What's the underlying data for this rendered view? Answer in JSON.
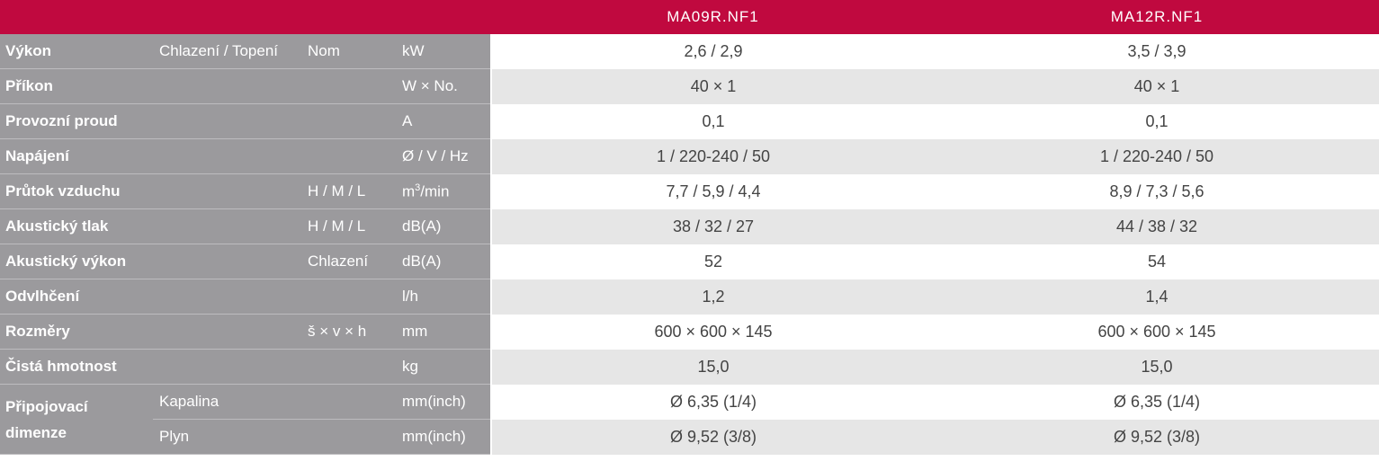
{
  "header": {
    "models": [
      "MA09R.NF1",
      "MA12R.NF1"
    ]
  },
  "rows": [
    {
      "label": "Výkon",
      "mode": "Chlazení / Topení",
      "nom": "Nom",
      "unit": "kW",
      "values": [
        "2,6 / 2,9",
        "3,5 / 3,9"
      ]
    },
    {
      "label": "Příkon",
      "mode": "",
      "nom": "",
      "unit": "W × No.",
      "values": [
        "40 × 1",
        "40 × 1"
      ]
    },
    {
      "label": "Provozní proud",
      "mode": "",
      "nom": "",
      "unit": "A",
      "values": [
        "0,1",
        "0,1"
      ]
    },
    {
      "label": "Napájení",
      "mode": "",
      "nom": "",
      "unit": "Ø / V / Hz",
      "values": [
        "1 / 220-240 / 50",
        "1 / 220-240 / 50"
      ]
    },
    {
      "label": "Průtok vzduchu",
      "mode": "",
      "nom": "H / M / L",
      "unit_base": "m",
      "unit_sup": "3",
      "unit_rest": "/min",
      "values": [
        "7,7 / 5,9 / 4,4",
        "8,9 / 7,3 / 5,6"
      ]
    },
    {
      "label": "Akustický tlak",
      "mode": "",
      "nom": "H / M / L",
      "unit": "dB(A)",
      "values": [
        "38 / 32 / 27",
        "44 / 38 / 32"
      ]
    },
    {
      "label": "Akustický výkon",
      "mode": "",
      "nom": "Chlazení",
      "unit": "dB(A)",
      "values": [
        "52",
        "54"
      ]
    },
    {
      "label": "Odvlhčení",
      "mode": "",
      "nom": "",
      "unit": "l/h",
      "values": [
        "1,2",
        "1,4"
      ]
    },
    {
      "label": "Rozměry",
      "mode": "",
      "nom": "š × v × h",
      "unit": "mm",
      "values": [
        "600 × 600 × 145",
        "600 × 600 × 145"
      ]
    },
    {
      "label": "Čistá hmotnost",
      "mode": "",
      "nom": "",
      "unit": "kg",
      "values": [
        "15,0",
        "15,0"
      ]
    },
    {
      "label_line1": "Připojovací",
      "label_line2": "dimenze",
      "mode": "Kapalina",
      "nom": "",
      "unit": "mm(inch)",
      "values": [
        "Ø 6,35 (1/4)",
        "Ø 6,35 (1/4)"
      ]
    },
    {
      "mode": "Plyn",
      "nom": "",
      "unit": "mm(inch)",
      "values": [
        "Ø 9,52 (3/8)",
        "Ø 9,52 (3/8)"
      ]
    }
  ]
}
